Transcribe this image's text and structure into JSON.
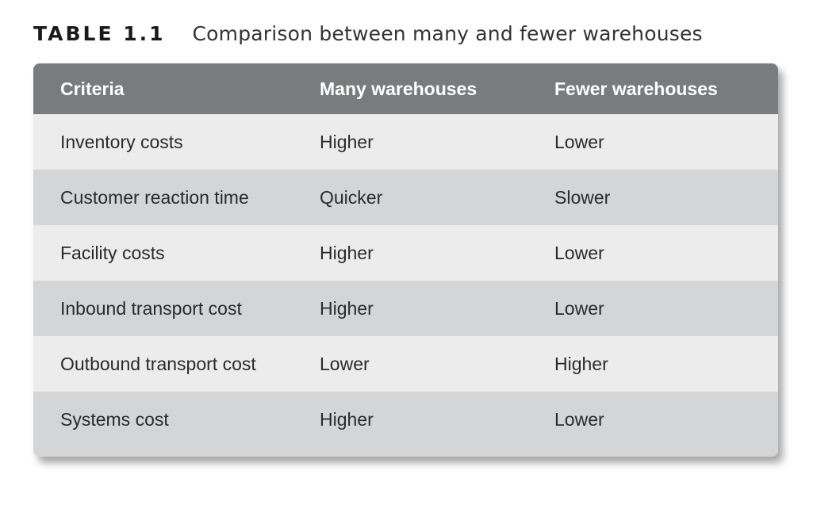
{
  "caption": {
    "label": "TABLE 1.1",
    "title": "Comparison between many and fewer warehouses"
  },
  "table": {
    "headers": [
      "Criteria",
      "Many warehouses",
      "Fewer warehouses"
    ],
    "rows": [
      [
        "Inventory costs",
        "Higher",
        "Lower"
      ],
      [
        "Customer reaction time",
        "Quicker",
        "Slower"
      ],
      [
        "Facility costs",
        "Higher",
        "Lower"
      ],
      [
        "Inbound transport cost",
        "Higher",
        "Lower"
      ],
      [
        "Outbound transport cost",
        "Lower",
        "Higher"
      ],
      [
        "Systems cost",
        "Higher",
        "Lower"
      ]
    ]
  },
  "colors": {
    "header_bg": "#7a7b7d",
    "row_light": "#ececec",
    "row_dark": "#d4d5d7"
  }
}
